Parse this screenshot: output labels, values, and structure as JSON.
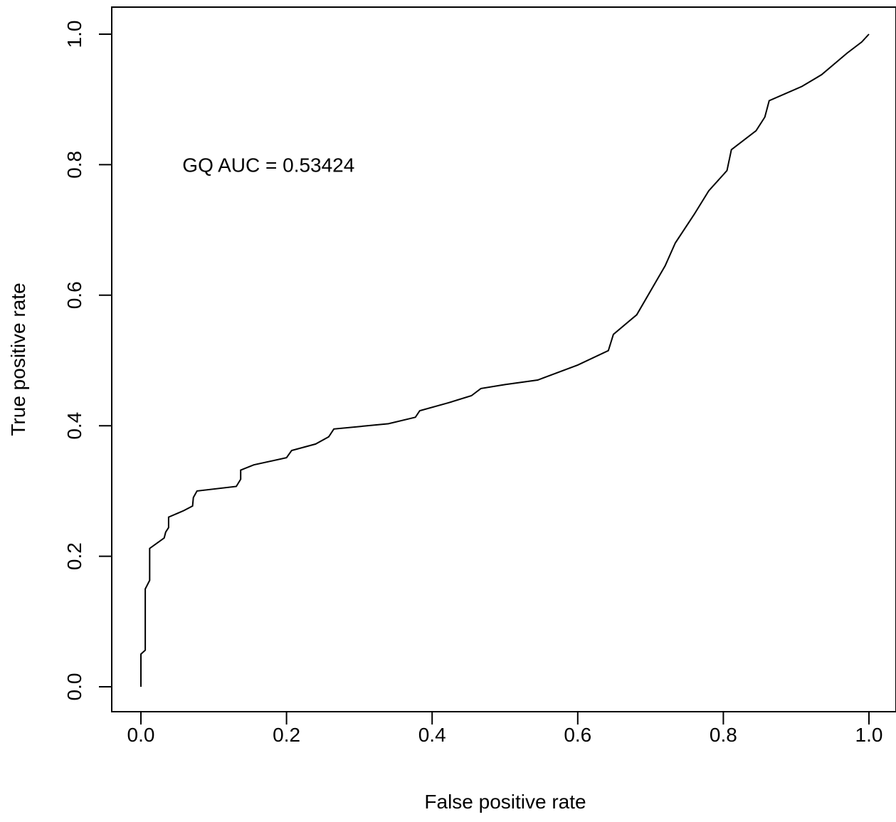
{
  "chart_data": {
    "type": "line",
    "title": "",
    "xlabel": "False positive rate",
    "ylabel": "True positive rate",
    "xlim": [
      0,
      1
    ],
    "ylim": [
      0,
      1
    ],
    "x_ticks": [
      "0.0",
      "0.2",
      "0.4",
      "0.6",
      "0.8",
      "1.0"
    ],
    "y_ticks": [
      "0.0",
      "0.2",
      "0.4",
      "0.6",
      "0.8",
      "1.0"
    ],
    "x_tick_values": [
      0,
      0.2,
      0.4,
      0.6,
      0.8,
      1.0
    ],
    "y_tick_values": [
      0,
      0.2,
      0.4,
      0.6,
      0.8,
      1.0
    ],
    "grid": false,
    "legend": "none",
    "annotation": {
      "text": "GQ  AUC =  0.53424",
      "x": 0.057,
      "y": 0.8
    },
    "series": [
      {
        "color": "#000000",
        "points": [
          [
            0.0,
            0.0
          ],
          [
            0.0,
            0.05
          ],
          [
            0.006,
            0.056
          ],
          [
            0.006,
            0.15
          ],
          [
            0.012,
            0.163
          ],
          [
            0.012,
            0.212
          ],
          [
            0.032,
            0.228
          ],
          [
            0.034,
            0.237
          ],
          [
            0.038,
            0.244
          ],
          [
            0.038,
            0.26
          ],
          [
            0.059,
            0.27
          ],
          [
            0.071,
            0.277
          ],
          [
            0.072,
            0.29
          ],
          [
            0.077,
            0.3
          ],
          [
            0.131,
            0.307
          ],
          [
            0.137,
            0.318
          ],
          [
            0.137,
            0.332
          ],
          [
            0.155,
            0.34
          ],
          [
            0.2,
            0.351
          ],
          [
            0.207,
            0.362
          ],
          [
            0.24,
            0.372
          ],
          [
            0.258,
            0.383
          ],
          [
            0.265,
            0.395
          ],
          [
            0.34,
            0.403
          ],
          [
            0.377,
            0.413
          ],
          [
            0.383,
            0.423
          ],
          [
            0.422,
            0.435
          ],
          [
            0.454,
            0.446
          ],
          [
            0.467,
            0.457
          ],
          [
            0.5,
            0.463
          ],
          [
            0.545,
            0.47
          ],
          [
            0.6,
            0.493
          ],
          [
            0.642,
            0.515
          ],
          [
            0.649,
            0.54
          ],
          [
            0.681,
            0.57
          ],
          [
            0.72,
            0.645
          ],
          [
            0.734,
            0.68
          ],
          [
            0.76,
            0.724
          ],
          [
            0.78,
            0.76
          ],
          [
            0.805,
            0.791
          ],
          [
            0.811,
            0.823
          ],
          [
            0.845,
            0.852
          ],
          [
            0.857,
            0.873
          ],
          [
            0.863,
            0.898
          ],
          [
            0.908,
            0.92
          ],
          [
            0.935,
            0.938
          ],
          [
            0.97,
            0.971
          ],
          [
            0.99,
            0.988
          ],
          [
            1.0,
            1.0
          ]
        ]
      }
    ]
  }
}
